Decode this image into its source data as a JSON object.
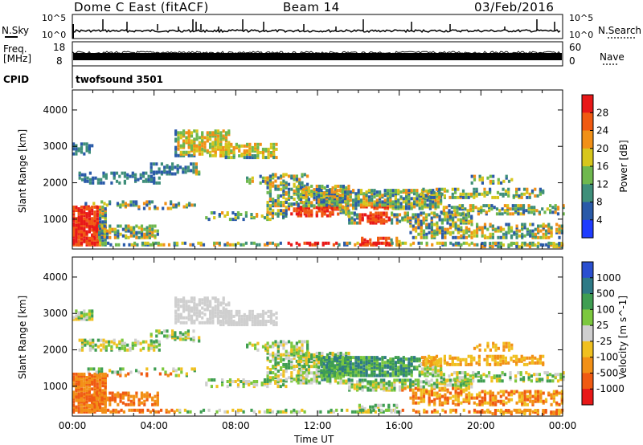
{
  "header": {
    "station": "Dome C East (fitACF)",
    "beam": "Beam 14",
    "date": "03/Feb/2016"
  },
  "status_panels": {
    "nsky_label": "N.Sky",
    "nsearch_label": "N.Search",
    "noise_top": "10^5",
    "noise_bottom": "10^0",
    "freq_label_1": "Freq.",
    "freq_label_2": "[MHz]",
    "freq_top": "18",
    "freq_bottom": "8",
    "nave_top": "60",
    "nave_bottom": "0",
    "nave_label": "Nave",
    "cpid_label": "CPID",
    "cpid_value": "twofsound 3501"
  },
  "chart_data": [
    {
      "type": "heatmap",
      "panel": "power",
      "ylabel": "Slant Range [km]",
      "ylim": [
        180,
        4550
      ],
      "yticks": [
        1000,
        2000,
        3000,
        4000
      ],
      "colorbar_label": "Power [dB]",
      "colorbar_ticks": [
        "4",
        "8",
        "12",
        "16",
        "20",
        "24",
        "28"
      ],
      "colorbar_colors": [
        "#1f3cff",
        "#2a5aa8",
        "#3f8f7a",
        "#6fb84e",
        "#d7c61c",
        "#f19017",
        "#f05a12",
        "#e81818"
      ]
    },
    {
      "type": "heatmap",
      "panel": "velocity",
      "ylabel": "Slant Range [km]",
      "ylim": [
        180,
        4550
      ],
      "yticks": [
        1000,
        2000,
        3000,
        4000
      ],
      "colorbar_label": "Velocity [m s^-1]",
      "colorbar_ticks": [
        "1000",
        "500",
        "100",
        "25",
        "-25",
        "-100",
        "-500",
        "-1000"
      ],
      "colorbar_colors": [
        "#2a4fd0",
        "#2e7a86",
        "#3f9e52",
        "#7cc83e",
        "#cfcfcf",
        "#f0c020",
        "#f29016",
        "#f05a12",
        "#e81818"
      ]
    }
  ],
  "time_axis": {
    "xlabel": "Time UT",
    "ticks": [
      "00:00",
      "04:00",
      "08:00",
      "12:00",
      "16:00",
      "20:00",
      "00:00"
    ]
  }
}
